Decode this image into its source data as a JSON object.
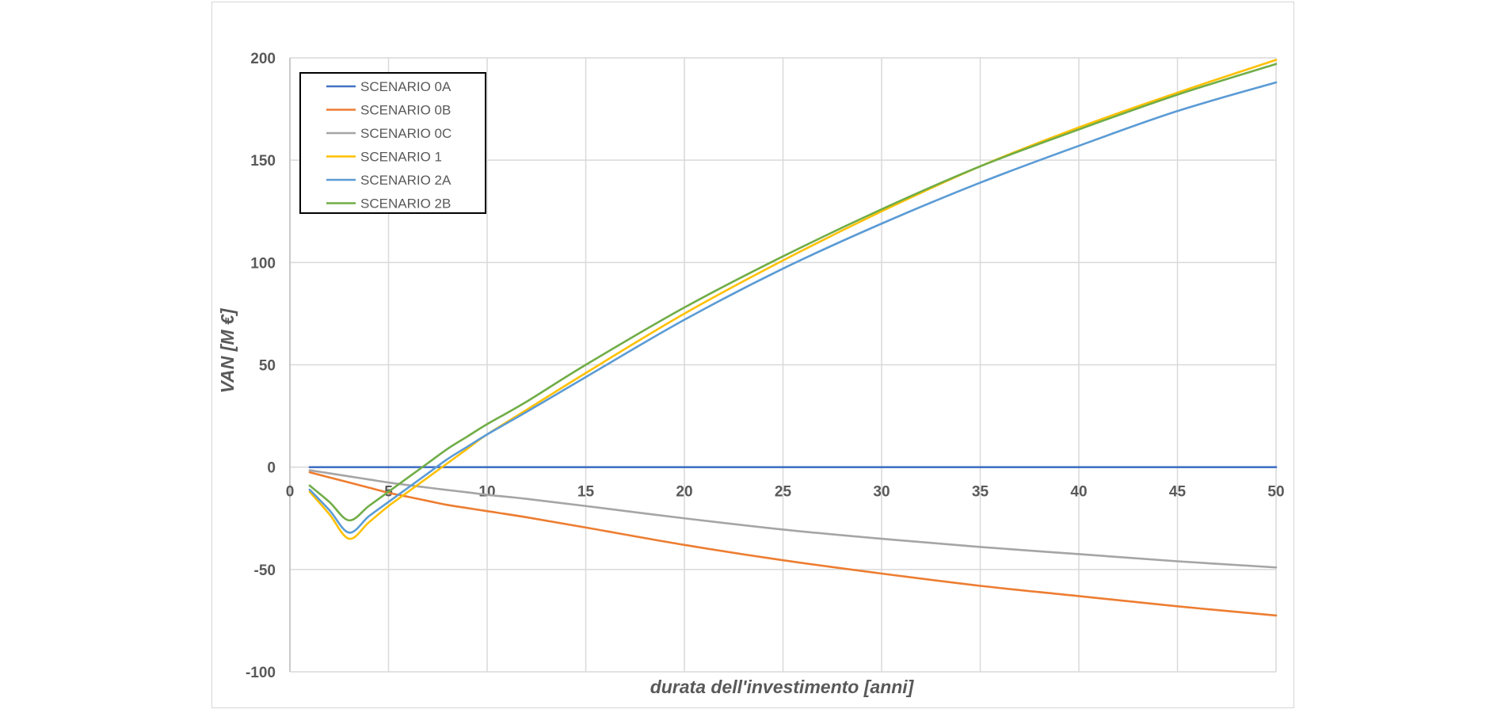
{
  "chart_data": {
    "type": "line",
    "title": "",
    "xlabel": "durata dell'investimento [anni]",
    "ylabel": "VAN [M €]",
    "xlim": [
      0,
      50
    ],
    "ylim": [
      -100,
      200
    ],
    "x_ticks": [
      0,
      5,
      10,
      15,
      20,
      25,
      30,
      35,
      40,
      45,
      50
    ],
    "y_ticks": [
      -100,
      -50,
      0,
      50,
      100,
      150,
      200
    ],
    "grid": true,
    "legend_position": "top-left",
    "x": [
      1,
      2,
      3,
      4,
      5,
      6,
      7,
      8,
      9,
      10,
      12,
      15,
      20,
      25,
      30,
      35,
      40,
      45,
      50
    ],
    "series": [
      {
        "name": "SCENARIO 0A",
        "color": "#4472C4",
        "values": [
          0,
          0,
          0,
          0,
          0,
          0,
          0,
          0,
          0,
          0,
          0,
          0,
          0,
          0,
          0,
          0,
          0,
          0,
          0
        ]
      },
      {
        "name": "SCENARIO 0B",
        "color": "#ED7D31",
        "values": [
          -2.5,
          -5,
          -7.5,
          -10,
          -12.5,
          -14.5,
          -16.5,
          -18.5,
          -20,
          -21.5,
          -24.5,
          -29.5,
          -38,
          -45.5,
          -52,
          -58,
          -63,
          -68,
          -72.5
        ]
      },
      {
        "name": "SCENARIO 0C",
        "color": "#A5A5A5",
        "values": [
          -1.5,
          -3,
          -4.5,
          -6,
          -7.5,
          -8.8,
          -10,
          -11.2,
          -12.3,
          -13.5,
          -15.5,
          -19,
          -25,
          -30.5,
          -35,
          -39,
          -42.5,
          -46,
          -49
        ]
      },
      {
        "name": "SCENARIO 1",
        "color": "#FFC000",
        "values": [
          -12,
          -23,
          -35,
          -27,
          -19,
          -12,
          -5,
          2,
          9,
          16,
          28,
          46,
          75,
          101,
          125,
          147,
          166,
          183,
          199
        ]
      },
      {
        "name": "SCENARIO 2A",
        "color": "#5B9BD5",
        "values": [
          -11,
          -21,
          -32,
          -24,
          -17,
          -10,
          -3,
          4,
          10,
          16,
          27,
          44,
          72,
          97,
          119,
          139,
          157,
          174,
          188
        ]
      },
      {
        "name": "SCENARIO 2B",
        "color": "#70AD47",
        "values": [
          -9,
          -17,
          -26,
          -19,
          -12,
          -5,
          2,
          9,
          15,
          21,
          32,
          50,
          78,
          103,
          126,
          147,
          165,
          182,
          197
        ]
      }
    ]
  }
}
